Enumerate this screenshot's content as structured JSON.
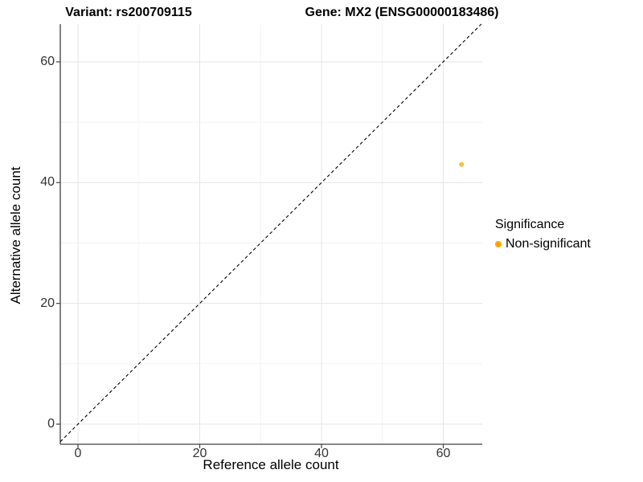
{
  "chart_data": {
    "type": "scatter",
    "title_left": "Variant: rs200709115",
    "title_right": "Gene: MX2 (ENSG00000183486)",
    "xlabel": "Reference allele count",
    "ylabel": "Alternative allele count",
    "xlim": [
      -2.9,
      66.4
    ],
    "ylim": [
      -3.3,
      66.25
    ],
    "major_ticks": [
      0,
      20,
      40,
      60
    ],
    "minor_ticks": [
      10,
      30,
      50
    ],
    "grid": true,
    "points": [
      {
        "x": 63,
        "y": 43,
        "series": "Non-significant"
      }
    ],
    "identity_line": {
      "style": "dashed",
      "equation": "y = x",
      "color": "#000000"
    },
    "legend": {
      "position": "right",
      "title": "Significance",
      "items": [
        {
          "label": "Non-significant",
          "color": "#FFA500"
        }
      ]
    },
    "colors": {
      "point": "#FFA500",
      "point_opacity": 0.75,
      "axis_line": "#404040",
      "tick_label": "#333333",
      "grid_major": "#e5e5e5",
      "grid_minor": "#f2f2f2"
    }
  }
}
